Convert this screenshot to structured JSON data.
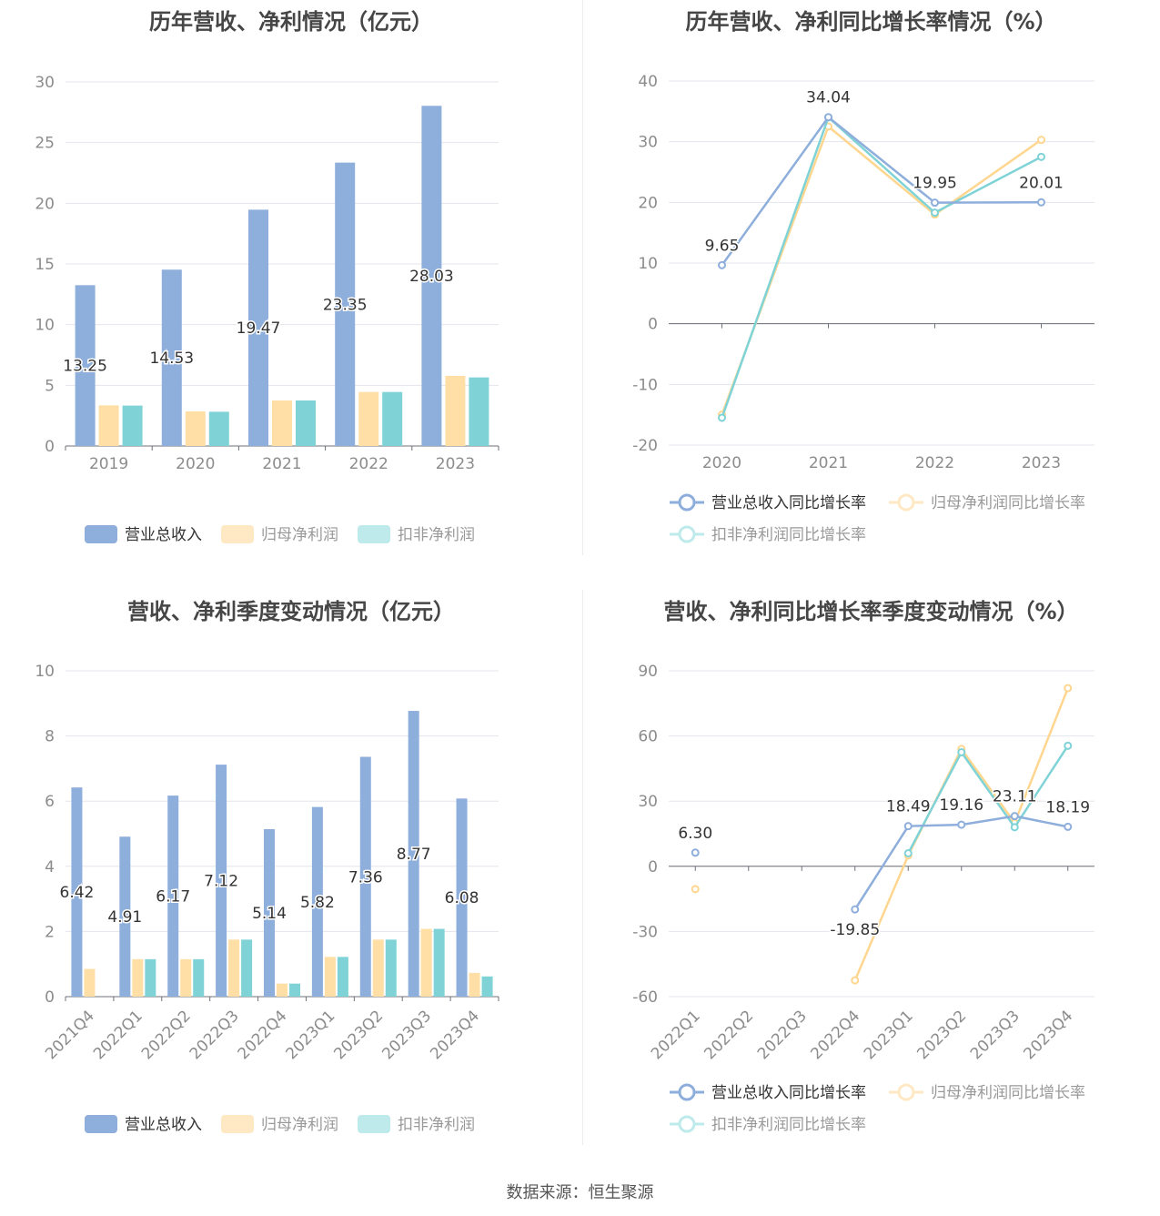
{
  "colors": {
    "revenue": "#8eaedc",
    "parent_profit": "#ffdfa6",
    "deducted_profit": "#7fd3d6",
    "legend_parent": "#ffe9c4",
    "legend_deducted": "#bfeaec",
    "grid": "#e3e5ee",
    "axis_text": "#8c8c8c",
    "label_text": "#333333"
  },
  "source_label": "数据来源：恒生聚源",
  "chart_data": [
    {
      "id": "annual_amounts",
      "type": "bar",
      "title": "历年营收、净利情况（亿元）",
      "categories": [
        "2019",
        "2020",
        "2021",
        "2022",
        "2023"
      ],
      "ylim": [
        0,
        30
      ],
      "yticks": [
        0,
        5,
        10,
        15,
        20,
        25,
        30
      ],
      "legend_position": "bottom",
      "series": [
        {
          "name": "营业总收入",
          "values": [
            13.25,
            14.53,
            19.47,
            23.35,
            28.03
          ],
          "labels": [
            "13.25",
            "14.53",
            "19.47",
            "23.35",
            "28.03"
          ]
        },
        {
          "name": "归母净利润",
          "values": [
            3.35,
            2.85,
            3.75,
            4.45,
            5.78
          ]
        },
        {
          "name": "扣非净利润",
          "values": [
            3.33,
            2.82,
            3.75,
            4.45,
            5.65
          ]
        }
      ]
    },
    {
      "id": "annual_growth",
      "type": "line",
      "title": "历年营收、净利同比增长率情况（%）",
      "categories": [
        "2020",
        "2021",
        "2022",
        "2023"
      ],
      "ylim": [
        -20,
        40
      ],
      "yticks": [
        -20,
        -10,
        0,
        10,
        20,
        30,
        40
      ],
      "legend_position": "bottom",
      "series": [
        {
          "name": "营业总收入同比增长率",
          "values": [
            9.65,
            34.04,
            19.95,
            20.01
          ],
          "labels": [
            "9.65",
            "34.04",
            "19.95",
            "20.01"
          ]
        },
        {
          "name": "归母净利润同比增长率",
          "values": [
            -15.0,
            32.5,
            18.0,
            30.3
          ]
        },
        {
          "name": "扣非净利润同比增长率",
          "values": [
            -15.5,
            34.0,
            18.3,
            27.5
          ]
        }
      ]
    },
    {
      "id": "quarterly_amounts",
      "type": "bar",
      "title": "营收、净利季度变动情况（亿元）",
      "categories": [
        "2021Q4",
        "2022Q1",
        "2022Q2",
        "2022Q3",
        "2022Q4",
        "2023Q1",
        "2023Q2",
        "2023Q3",
        "2023Q4"
      ],
      "ylim": [
        0,
        10
      ],
      "yticks": [
        0,
        2,
        4,
        6,
        8,
        10
      ],
      "legend_position": "bottom",
      "series": [
        {
          "name": "营业总收入",
          "values": [
            6.42,
            4.91,
            6.17,
            7.12,
            5.14,
            5.82,
            7.36,
            8.77,
            6.08
          ],
          "labels": [
            "6.42",
            "4.91",
            "6.17",
            "7.12",
            "5.14",
            "5.82",
            "7.36",
            "8.77",
            "6.08"
          ]
        },
        {
          "name": "归母净利润",
          "values": [
            0.85,
            1.15,
            1.15,
            1.75,
            0.4,
            1.22,
            1.75,
            2.08,
            0.73
          ]
        },
        {
          "name": "扣非净利润",
          "values": [
            0,
            1.15,
            1.15,
            1.75,
            0.4,
            1.22,
            1.75,
            2.08,
            0.62
          ]
        }
      ]
    },
    {
      "id": "quarterly_growth",
      "type": "line",
      "title": "营收、净利同比增长率季度变动情况（%）",
      "categories": [
        "2022Q1",
        "2022Q2",
        "2022Q3",
        "2022Q4",
        "2023Q1",
        "2023Q2",
        "2023Q3",
        "2023Q4"
      ],
      "ylim": [
        -60,
        90
      ],
      "yticks": [
        -60,
        -30,
        0,
        30,
        60,
        90
      ],
      "legend_position": "bottom",
      "series": [
        {
          "name": "营业总收入同比增长率",
          "values": [
            6.3,
            null,
            null,
            -19.85,
            18.49,
            19.16,
            23.11,
            18.19
          ],
          "labels": [
            "6.30",
            "",
            "",
            "-19.85",
            "18.49",
            "19.16",
            "23.11",
            "18.19"
          ]
        },
        {
          "name": "归母净利润同比增长率",
          "values": [
            -10.5,
            null,
            null,
            -52.5,
            5.0,
            54.0,
            20.0,
            82.0
          ]
        },
        {
          "name": "扣非净利润同比增长率",
          "values": [
            null,
            null,
            null,
            null,
            6.0,
            52.5,
            18.0,
            55.5
          ]
        }
      ]
    }
  ]
}
